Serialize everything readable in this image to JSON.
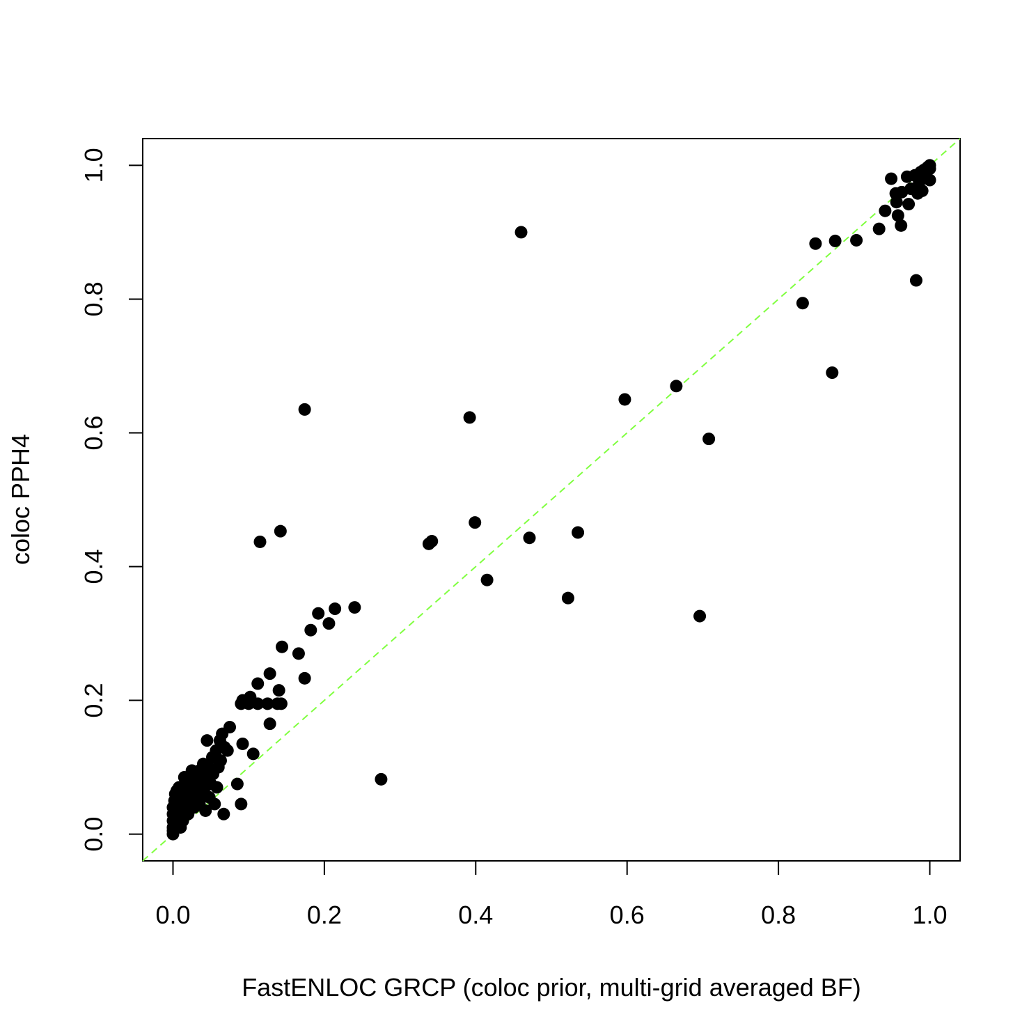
{
  "colors": {
    "points": "#000000",
    "reference_line": "#80ff40",
    "frame": "#000000"
  },
  "chart_data": {
    "type": "scatter",
    "title": "",
    "xlabel": "FastENLOC GRCP (coloc prior, multi-grid averaged BF)",
    "ylabel": "coloc PPH4",
    "xlim": [
      -0.04,
      1.04
    ],
    "ylim": [
      -0.04,
      1.04
    ],
    "xticks": [
      0.0,
      0.2,
      0.4,
      0.6,
      0.8,
      1.0
    ],
    "yticks": [
      0.0,
      0.2,
      0.4,
      0.6,
      0.8,
      1.0
    ],
    "xtick_labels": [
      "0.0",
      "0.2",
      "0.4",
      "0.6",
      "0.8",
      "1.0"
    ],
    "ytick_labels": [
      "0.0",
      "0.2",
      "0.4",
      "0.6",
      "0.8",
      "1.0"
    ],
    "grid": false,
    "legend": "none",
    "reference_line": {
      "slope": 1,
      "intercept": 0,
      "style": "dashed"
    },
    "points": [
      [
        0.0,
        0.0
      ],
      [
        0.0,
        0.005
      ],
      [
        0.0,
        0.01
      ],
      [
        0.0,
        0.02
      ],
      [
        0.0,
        0.03
      ],
      [
        0.0,
        0.04
      ],
      [
        0.002,
        0.05
      ],
      [
        0.003,
        0.06
      ],
      [
        0.005,
        0.015
      ],
      [
        0.005,
        0.065
      ],
      [
        0.006,
        0.025
      ],
      [
        0.008,
        0.04
      ],
      [
        0.008,
        0.07
      ],
      [
        0.01,
        0.01
      ],
      [
        0.01,
        0.03
      ],
      [
        0.01,
        0.055
      ],
      [
        0.012,
        0.045
      ],
      [
        0.013,
        0.02
      ],
      [
        0.015,
        0.035
      ],
      [
        0.015,
        0.06
      ],
      [
        0.015,
        0.085
      ],
      [
        0.017,
        0.07
      ],
      [
        0.018,
        0.05
      ],
      [
        0.02,
        0.03
      ],
      [
        0.02,
        0.08
      ],
      [
        0.022,
        0.06
      ],
      [
        0.024,
        0.045
      ],
      [
        0.025,
        0.095
      ],
      [
        0.026,
        0.07
      ],
      [
        0.028,
        0.04
      ],
      [
        0.03,
        0.055
      ],
      [
        0.03,
        0.085
      ],
      [
        0.032,
        0.075
      ],
      [
        0.034,
        0.065
      ],
      [
        0.035,
        0.045
      ],
      [
        0.035,
        0.095
      ],
      [
        0.037,
        0.08
      ],
      [
        0.04,
        0.06
      ],
      [
        0.04,
        0.105
      ],
      [
        0.042,
        0.07
      ],
      [
        0.043,
        0.035
      ],
      [
        0.045,
        0.085
      ],
      [
        0.045,
        0.14
      ],
      [
        0.047,
        0.1
      ],
      [
        0.048,
        0.055
      ],
      [
        0.05,
        0.075
      ],
      [
        0.052,
        0.115
      ],
      [
        0.053,
        0.09
      ],
      [
        0.055,
        0.045
      ],
      [
        0.057,
        0.125
      ],
      [
        0.058,
        0.07
      ],
      [
        0.06,
        0.1
      ],
      [
        0.062,
        0.14
      ],
      [
        0.063,
        0.11
      ],
      [
        0.065,
        0.15
      ],
      [
        0.067,
        0.03
      ],
      [
        0.068,
        0.13
      ],
      [
        0.072,
        0.125
      ],
      [
        0.075,
        0.16
      ],
      [
        0.085,
        0.075
      ],
      [
        0.09,
        0.045
      ],
      [
        0.092,
        0.135
      ],
      [
        0.09,
        0.195
      ],
      [
        0.092,
        0.2
      ],
      [
        0.1,
        0.195
      ],
      [
        0.102,
        0.205
      ],
      [
        0.106,
        0.12
      ],
      [
        0.112,
        0.225
      ],
      [
        0.112,
        0.195
      ],
      [
        0.115,
        0.437
      ],
      [
        0.125,
        0.195
      ],
      [
        0.128,
        0.24
      ],
      [
        0.128,
        0.165
      ],
      [
        0.138,
        0.195
      ],
      [
        0.14,
        0.215
      ],
      [
        0.142,
        0.453
      ],
      [
        0.143,
        0.195
      ],
      [
        0.144,
        0.28
      ],
      [
        0.166,
        0.27
      ],
      [
        0.174,
        0.635
      ],
      [
        0.174,
        0.233
      ],
      [
        0.182,
        0.305
      ],
      [
        0.192,
        0.33
      ],
      [
        0.206,
        0.315
      ],
      [
        0.214,
        0.337
      ],
      [
        0.24,
        0.339
      ],
      [
        0.275,
        0.082
      ],
      [
        0.338,
        0.434
      ],
      [
        0.342,
        0.438
      ],
      [
        0.392,
        0.623
      ],
      [
        0.399,
        0.466
      ],
      [
        0.415,
        0.38
      ],
      [
        0.46,
        0.9
      ],
      [
        0.471,
        0.443
      ],
      [
        0.522,
        0.353
      ],
      [
        0.535,
        0.451
      ],
      [
        0.597,
        0.65
      ],
      [
        0.665,
        0.67
      ],
      [
        0.696,
        0.326
      ],
      [
        0.708,
        0.591
      ],
      [
        0.832,
        0.794
      ],
      [
        0.849,
        0.883
      ],
      [
        0.871,
        0.69
      ],
      [
        0.875,
        0.887
      ],
      [
        0.903,
        0.888
      ],
      [
        0.933,
        0.905
      ],
      [
        0.941,
        0.932
      ],
      [
        0.949,
        0.98
      ],
      [
        0.955,
        0.958
      ],
      [
        0.956,
        0.945
      ],
      [
        0.958,
        0.925
      ],
      [
        0.962,
        0.91
      ],
      [
        0.963,
        0.96
      ],
      [
        0.97,
        0.983
      ],
      [
        0.972,
        0.942
      ],
      [
        0.975,
        0.965
      ],
      [
        0.98,
        0.985
      ],
      [
        0.982,
        0.828
      ],
      [
        0.984,
        0.958
      ],
      [
        0.986,
        0.975
      ],
      [
        0.988,
        0.99
      ],
      [
        0.99,
        0.962
      ],
      [
        0.992,
        0.993
      ],
      [
        0.995,
        0.985
      ],
      [
        0.997,
        0.997
      ],
      [
        1.0,
        1.0
      ],
      [
        1.0,
        0.978
      ],
      [
        1.0,
        0.995
      ]
    ]
  }
}
